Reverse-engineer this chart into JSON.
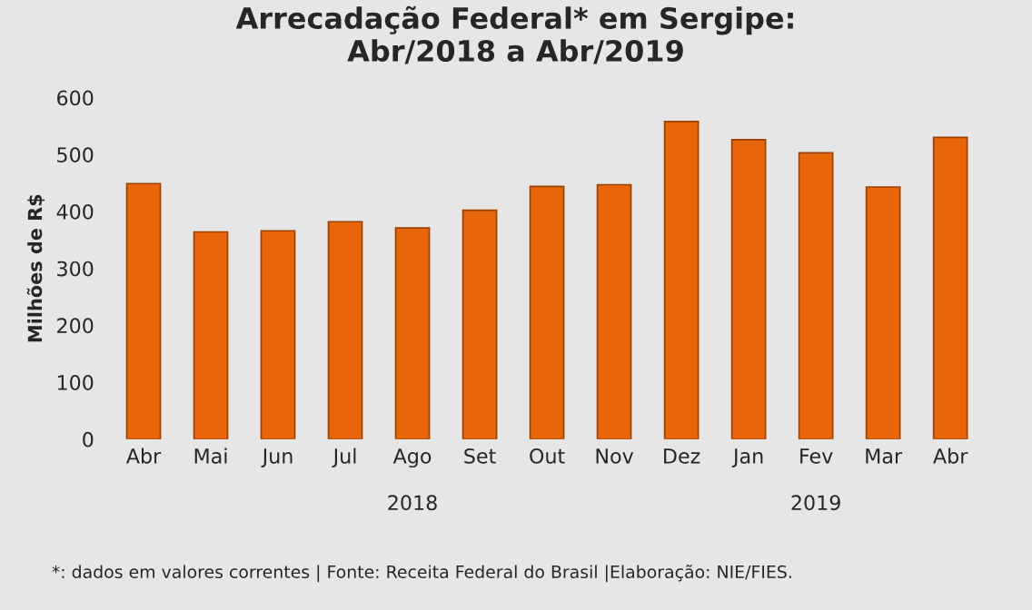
{
  "chart_data": {
    "type": "bar",
    "title": "Arrecadação Federal* em Sergipe:\nAbr/2018 a Abr/2019",
    "ylabel": "Milhões de R$",
    "categories": [
      "Abr",
      "Mai",
      "Jun",
      "Jul",
      "Ago",
      "Set",
      "Out",
      "Nov",
      "Dez",
      "Jan",
      "Fev",
      "Mar",
      "Abr"
    ],
    "values": [
      449,
      364,
      366,
      382,
      371,
      402,
      444,
      447,
      558,
      526,
      503,
      443,
      530
    ],
    "color": "#e8650a",
    "ylim": [
      0,
      600
    ],
    "yticks": [
      0,
      100,
      200,
      300,
      400,
      500,
      600
    ],
    "grid": false,
    "annotations": [
      "2018",
      "2019",
      "*: dados em valores correntes | Fonte: Receita Federal do Brasil |Elaboração: NIE/FIES."
    ]
  }
}
